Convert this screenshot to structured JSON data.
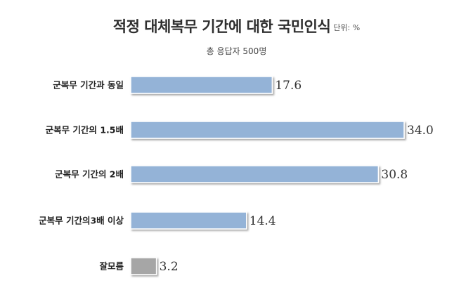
{
  "chart_data": {
    "type": "bar",
    "orientation": "horizontal",
    "title": "적정 대체복무 기간에 대한 국민인식",
    "unit": "단위: %",
    "subtitle": "총 응답자 500명",
    "categories": [
      "군복무 기간과 동일",
      "군복무 기간의 1.5배",
      "군복무 기간의 2배",
      "군복무 기간의3배 이상",
      "잘모름"
    ],
    "values": [
      17.6,
      34.0,
      30.8,
      14.4,
      3.2
    ],
    "value_labels": [
      "17.6",
      "34.0",
      "30.8",
      "14.4",
      "3.2"
    ],
    "bar_colors": [
      "#94b3d7",
      "#94b3d7",
      "#94b3d7",
      "#94b3d7",
      "#a6a6a6"
    ],
    "xlim": [
      0,
      34.0
    ],
    "grid": false,
    "legend": "none"
  }
}
